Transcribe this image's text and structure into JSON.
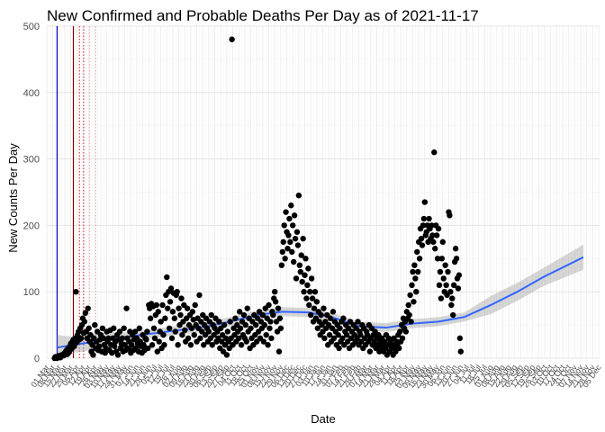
{
  "chart_data": {
    "type": "scatter",
    "title": "New Confirmed and Probable Deaths Per Day as of 2021-11-17",
    "xlabel": "Date",
    "ylabel": "New Counts Per Day",
    "ylim": [
      0,
      500
    ],
    "xlim": [
      "2020-03-01",
      "2021-12-06"
    ],
    "y_ticks": [
      0,
      100,
      200,
      300,
      400,
      500
    ],
    "x_tick_labels": [
      "01 Mar",
      "08 Mar",
      "15 Mar",
      "22 Mar",
      "29 Mar",
      "05 Apr",
      "12 Apr",
      "19 Apr",
      "26 Apr",
      "03 May",
      "10 May",
      "17 May",
      "24 May",
      "31 May",
      "07 Jun",
      "14 Jun",
      "21 Jun",
      "28 Jun",
      "05 Jul",
      "12 Jul",
      "19 Jul",
      "26 Jul",
      "02 Aug",
      "09 Aug",
      "16 Aug",
      "23 Aug",
      "30 Aug",
      "06 Sep",
      "13 Sep",
      "20 Sep",
      "27 Sep",
      "04 Oct",
      "11 Oct",
      "18 Oct",
      "25 Oct",
      "01 Nov",
      "08 Nov",
      "15 Nov",
      "22 Nov",
      "29 Nov",
      "06 Dec",
      "13 Dec",
      "20 Dec",
      "27 Dec",
      "03 Jan",
      "10 Jan",
      "17 Jan",
      "24 Jan",
      "31 Jan",
      "07 Feb",
      "14 Feb",
      "21 Feb",
      "28 Feb",
      "07 Mar",
      "14 Mar",
      "21 Mar",
      "28 Mar",
      "04 Apr",
      "11 Apr",
      "18 Apr",
      "25 Apr",
      "02 May",
      "09 May",
      "16 May",
      "23 May",
      "30 May",
      "06 Jun",
      "13 Jun",
      "20 Jun",
      "27 Jun",
      "04 Jul",
      "11 Jul",
      "18 Jul",
      "25 Jul",
      "01 Aug",
      "08 Aug",
      "15 Aug",
      "22 Aug",
      "29 Aug",
      "05 Sep",
      "12 Sep",
      "19 Sep",
      "26 Sep",
      "03 Oct",
      "10 Oct",
      "17 Oct",
      "24 Oct",
      "31 Oct",
      "07 Nov",
      "14 Nov",
      "21 Nov",
      "28 Nov",
      "05 Dec"
    ],
    "grid": true,
    "legend": "none",
    "vertical_lines": [
      {
        "x": "2020-03-13",
        "color": "#0000cc",
        "style": "solid"
      },
      {
        "x": "2020-04-01",
        "color": "#8b0000",
        "style": "solid"
      },
      {
        "x": "2020-04-08",
        "color": "#cc0000",
        "style": "dotted"
      },
      {
        "x": "2020-04-13",
        "color": "#cc0000",
        "style": "dotted"
      },
      {
        "x": "2020-04-20",
        "color": "#ee9999",
        "style": "dotted"
      },
      {
        "x": "2020-04-27",
        "color": "#ee9999",
        "style": "dotted"
      }
    ],
    "series": [
      {
        "points_per_day_from": "2020-03-10",
        "values": [
          0,
          2,
          1,
          0,
          3,
          2,
          4,
          1,
          3,
          5,
          6,
          4,
          8,
          10,
          12,
          6,
          15,
          9,
          18,
          22,
          14,
          25,
          28,
          18,
          30,
          100,
          24,
          35,
          40,
          28,
          45,
          30,
          50,
          60,
          38,
          55,
          68,
          40,
          30,
          75,
          45,
          25,
          35,
          10,
          20,
          5,
          30,
          50,
          15,
          25,
          40,
          12,
          18,
          28,
          35,
          10,
          45,
          30,
          20,
          8,
          15,
          40,
          25,
          30,
          12,
          42,
          20,
          8,
          30,
          45,
          18,
          25,
          10,
          35,
          5,
          28,
          40,
          15,
          22,
          30,
          10,
          45,
          20,
          12,
          75,
          30,
          15,
          25,
          40,
          8,
          20,
          35,
          12,
          28,
          40,
          15,
          30,
          22,
          10,
          45,
          25,
          18,
          8,
          35,
          20,
          12,
          30,
          28,
          40,
          15,
          80,
          75,
          60,
          82,
          20,
          78,
          45,
          30,
          65,
          80,
          10,
          70,
          25,
          40,
          55,
          15,
          80,
          35,
          20,
          60,
          95,
          122,
          75,
          100,
          45,
          85,
          105,
          30,
          70,
          98,
          60,
          40,
          95,
          100,
          20,
          75,
          50,
          65,
          90,
          35,
          55,
          80,
          42,
          25,
          60,
          75,
          30,
          50,
          65,
          20,
          45,
          70,
          58,
          35,
          80,
          50,
          25,
          60,
          45,
          95,
          30,
          55,
          40,
          65,
          20,
          50,
          35,
          60,
          45,
          25,
          40,
          55,
          30,
          65,
          20,
          50,
          35,
          45,
          60,
          25,
          40,
          30,
          55,
          15,
          45,
          25,
          35,
          10,
          50,
          20,
          30,
          5,
          40,
          25,
          15,
          55,
          30,
          480,
          20,
          45,
          35,
          60,
          25,
          50,
          40,
          30,
          70,
          45,
          20,
          55,
          35,
          65,
          30,
          50,
          25,
          75,
          40,
          60,
          15,
          45,
          30,
          55,
          20,
          65,
          35,
          50,
          25,
          60,
          40,
          70,
          30,
          55,
          45,
          65,
          25,
          50,
          75,
          35,
          60,
          20,
          80,
          45,
          55,
          30,
          70,
          65,
          90,
          100,
          85,
          55,
          40,
          75,
          10,
          60,
          45,
          140,
          160,
          175,
          200,
          150,
          220,
          190,
          165,
          185,
          210,
          175,
          230,
          160,
          200,
          145,
          215,
          180,
          120,
          190,
          170,
          245,
          140,
          130,
          155,
          115,
          180,
          100,
          125,
          150,
          90,
          110,
          135,
          80,
          100,
          65,
          120,
          90,
          55,
          75,
          100,
          60,
          85,
          45,
          70,
          55,
          35,
          65,
          50,
          40,
          75,
          30,
          55,
          45,
          65,
          20,
          50,
          35,
          60,
          25,
          45,
          70,
          30,
          55,
          40,
          20,
          50,
          35,
          15,
          45,
          25,
          55,
          30,
          60,
          20,
          40,
          50,
          35,
          25,
          45,
          15,
          55,
          30,
          40,
          20,
          50,
          35,
          25,
          45,
          30,
          55,
          20,
          40,
          35,
          25,
          50,
          15,
          45,
          30,
          20,
          40,
          35,
          25,
          50,
          10,
          30,
          45,
          20,
          35,
          25,
          40,
          15,
          30,
          20,
          35,
          10,
          25,
          15,
          30,
          20,
          10,
          25,
          15,
          35,
          5,
          20,
          30,
          10,
          25,
          15,
          20,
          5,
          30,
          15,
          10,
          25,
          20,
          35,
          15,
          40,
          25,
          50,
          30,
          60,
          45,
          55,
          40,
          70,
          60,
          80,
          65,
          95,
          55,
          110,
          130,
          85,
          140,
          120,
          100,
          160,
          130,
          175,
          150,
          195,
          180,
          170,
          200,
          210,
          235,
          185,
          190,
          200,
          175,
          210,
          195,
          180,
          200,
          185,
          175,
          310,
          165,
          200,
          185,
          150,
          195,
          110,
          130,
          90,
          150,
          175,
          120,
          100,
          140,
          110,
          95,
          130,
          220,
          215,
          100,
          80,
          90,
          65,
          110,
          145,
          165,
          150,
          120,
          105,
          125,
          30,
          10
        ]
      }
    ],
    "trend_line": [
      {
        "x": "2020-03-13",
        "y": 16
      },
      {
        "x": "2020-04-01",
        "y": 20
      },
      {
        "x": "2020-05-01",
        "y": 26
      },
      {
        "x": "2020-06-01",
        "y": 32
      },
      {
        "x": "2020-07-01",
        "y": 37
      },
      {
        "x": "2020-08-01",
        "y": 42
      },
      {
        "x": "2020-09-01",
        "y": 47
      },
      {
        "x": "2020-10-01",
        "y": 55
      },
      {
        "x": "2020-11-01",
        "y": 65
      },
      {
        "x": "2020-12-01",
        "y": 70
      },
      {
        "x": "2021-01-01",
        "y": 69
      },
      {
        "x": "2021-02-01",
        "y": 60
      },
      {
        "x": "2021-03-01",
        "y": 48
      },
      {
        "x": "2021-04-01",
        "y": 46
      },
      {
        "x": "2021-05-01",
        "y": 52
      },
      {
        "x": "2021-06-01",
        "y": 55
      },
      {
        "x": "2021-07-01",
        "y": 62
      },
      {
        "x": "2021-08-01",
        "y": 80
      },
      {
        "x": "2021-09-01",
        "y": 100
      },
      {
        "x": "2021-10-01",
        "y": 122
      },
      {
        "x": "2021-11-17",
        "y": 152
      }
    ],
    "colors": {
      "points": "#000000",
      "trend": "#3366ff",
      "ribbon": "#999999",
      "grid_major": "#e5e5e5",
      "grid_minor": "#f2f2f2"
    }
  }
}
